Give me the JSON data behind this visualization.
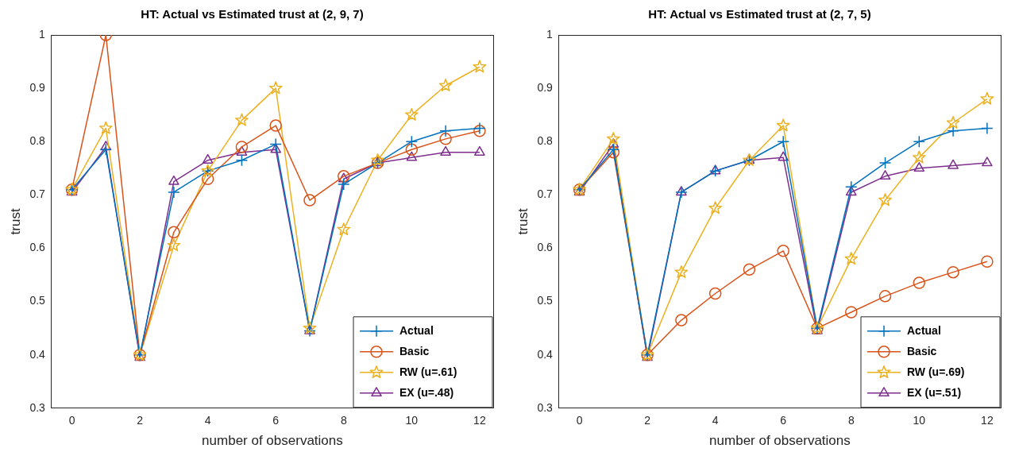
{
  "chart_data": [
    {
      "type": "line",
      "title": "HT: Actual vs Estimated trust at (2, 9, 7)",
      "xlabel": "number of observations",
      "ylabel": "trust",
      "x": [
        0,
        1,
        2,
        3,
        4,
        5,
        6,
        7,
        8,
        9,
        10,
        11,
        12
      ],
      "xlim": [
        -0.6,
        12.4
      ],
      "xticks": [
        0,
        2,
        4,
        6,
        8,
        10,
        12
      ],
      "ylim": [
        0.3,
        1
      ],
      "yticks": [
        0.3,
        0.4,
        0.5,
        0.6,
        0.7,
        0.8,
        0.9,
        1
      ],
      "grid": false,
      "legend": "bottom right",
      "line_style": "solid",
      "series": [
        {
          "name": "Actual",
          "color": "#0072bd",
          "marker": "cross",
          "values": [
            0.71,
            0.785,
            0.4,
            0.705,
            0.745,
            0.765,
            0.795,
            0.445,
            0.72,
            0.76,
            0.8,
            0.82,
            0.825
          ]
        },
        {
          "name": "Basic",
          "color": "#d95319",
          "marker": "circle",
          "values": [
            0.71,
            1.0,
            0.4,
            0.63,
            0.73,
            0.79,
            0.83,
            0.69,
            0.735,
            0.76,
            0.785,
            0.805,
            0.82
          ]
        },
        {
          "name": "RW (u=.61)",
          "color": "#edb120",
          "marker": "star",
          "values": [
            0.71,
            0.825,
            0.4,
            0.605,
            0.745,
            0.84,
            0.9,
            0.45,
            0.635,
            0.765,
            0.85,
            0.905,
            0.94
          ]
        },
        {
          "name": "EX (u=.48)",
          "color": "#7e2f8e",
          "marker": "triangle",
          "values": [
            0.705,
            0.79,
            0.395,
            0.725,
            0.765,
            0.78,
            0.785,
            0.445,
            0.73,
            0.76,
            0.77,
            0.78,
            0.78
          ]
        }
      ]
    },
    {
      "type": "line",
      "title": "HT: Actual vs Estimated trust at (2, 7, 5)",
      "xlabel": "number of observations",
      "ylabel": "trust",
      "x": [
        0,
        1,
        2,
        3,
        4,
        5,
        6,
        7,
        8,
        9,
        10,
        11,
        12
      ],
      "xlim": [
        -0.6,
        12.4
      ],
      "xticks": [
        0,
        2,
        4,
        6,
        8,
        10,
        12
      ],
      "ylim": [
        0.3,
        1
      ],
      "yticks": [
        0.3,
        0.4,
        0.5,
        0.6,
        0.7,
        0.8,
        0.9,
        1
      ],
      "grid": false,
      "legend": "bottom right",
      "line_style": "solid",
      "series": [
        {
          "name": "Actual",
          "color": "#0072bd",
          "marker": "cross",
          "values": [
            0.71,
            0.785,
            0.4,
            0.705,
            0.745,
            0.765,
            0.8,
            0.45,
            0.715,
            0.76,
            0.8,
            0.82,
            0.825
          ]
        },
        {
          "name": "Basic",
          "color": "#d95319",
          "marker": "circle",
          "values": [
            0.71,
            0.78,
            0.4,
            0.465,
            0.515,
            0.56,
            0.595,
            0.45,
            0.48,
            0.51,
            0.535,
            0.555,
            0.575
          ]
        },
        {
          "name": "RW (u=.69)",
          "color": "#edb120",
          "marker": "star",
          "values": [
            0.71,
            0.805,
            0.4,
            0.555,
            0.675,
            0.765,
            0.83,
            0.45,
            0.58,
            0.69,
            0.77,
            0.835,
            0.88
          ]
        },
        {
          "name": "EX (u=.51)",
          "color": "#7e2f8e",
          "marker": "triangle",
          "values": [
            0.705,
            0.795,
            0.395,
            0.705,
            0.745,
            0.765,
            0.77,
            0.445,
            0.705,
            0.735,
            0.75,
            0.755,
            0.76
          ]
        }
      ]
    }
  ]
}
